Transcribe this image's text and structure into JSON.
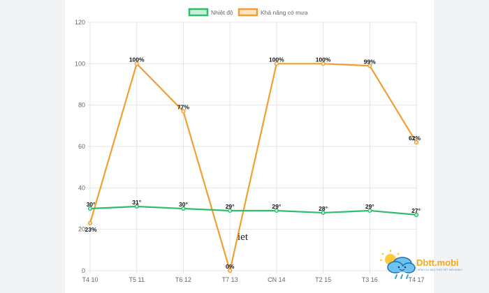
{
  "chart_data": {
    "type": "line",
    "categories": [
      "T4 10",
      "T5 11",
      "T6 12",
      "T7 13",
      "CN 14",
      "T2 15",
      "T3 16",
      "T4 17"
    ],
    "series": [
      {
        "name": "Nhiệt độ",
        "values": [
          30,
          31,
          30,
          29,
          29,
          28,
          29,
          27
        ],
        "labels": [
          "30°",
          "31°",
          "30°",
          "29°",
          "29°",
          "28°",
          "29°",
          "27°"
        ],
        "color": "#2ebd6b",
        "fill": "#c9efd8"
      },
      {
        "name": "Khả năng có mưa",
        "values": [
          23,
          100,
          77,
          0,
          100,
          100,
          99,
          62
        ],
        "labels": [
          "23%",
          "100%",
          "77%",
          "0%",
          "100%",
          "100%",
          "99%",
          "62%"
        ],
        "color": "#f0a030",
        "fill": "#fde3c6"
      }
    ],
    "y_ticks": [
      "0",
      "20",
      "40",
      "60",
      "80",
      "100",
      "120"
    ],
    "ylim": [
      0,
      120
    ],
    "grid": true,
    "legend": "top-center",
    "annotation": "iet"
  },
  "watermark": {
    "name": "Dbtt.mobi",
    "tagline": "KÊNH DỰ BÁO THỜI TIẾT MỖI NGÀY!"
  }
}
